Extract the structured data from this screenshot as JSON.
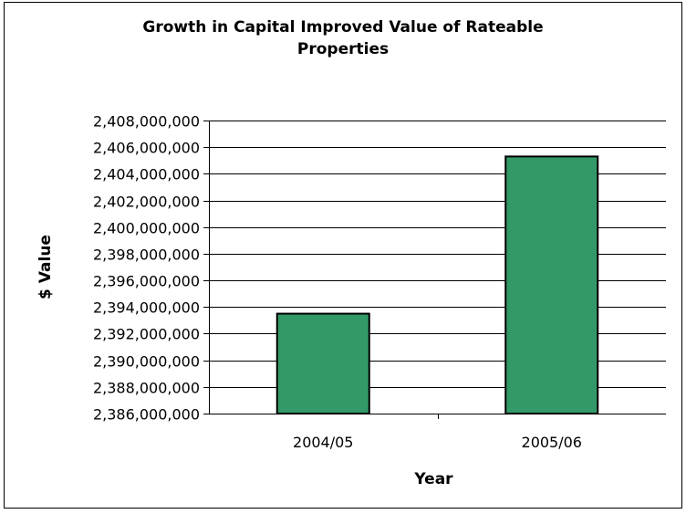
{
  "chart_data": {
    "type": "bar",
    "title": "Growth in Capital Improved Value of Rateable Properties",
    "title_lines": [
      "Growth in Capital Improved Value of Rateable",
      "Properties"
    ],
    "xlabel": "Year",
    "ylabel": "$ Value",
    "categories": [
      "2004/05",
      "2005/06"
    ],
    "values": [
      2393500000,
      2405300000
    ],
    "ylim": [
      2386000000,
      2408000000
    ],
    "yticks": [
      2386000000,
      2388000000,
      2390000000,
      2392000000,
      2394000000,
      2396000000,
      2398000000,
      2400000000,
      2402000000,
      2404000000,
      2406000000,
      2408000000
    ],
    "ytick_labels": [
      "2,386,000,000",
      "2,388,000,000",
      "2,390,000,000",
      "2,392,000,000",
      "2,394,000,000",
      "2,396,000,000",
      "2,398,000,000",
      "2,400,000,000",
      "2,402,000,000",
      "2,404,000,000",
      "2,406,000,000",
      "2,408,000,000"
    ],
    "grid": true,
    "legend": "none",
    "colors": {
      "bar": "#339966",
      "bar_border": "#000000",
      "grid": "#000000"
    }
  }
}
